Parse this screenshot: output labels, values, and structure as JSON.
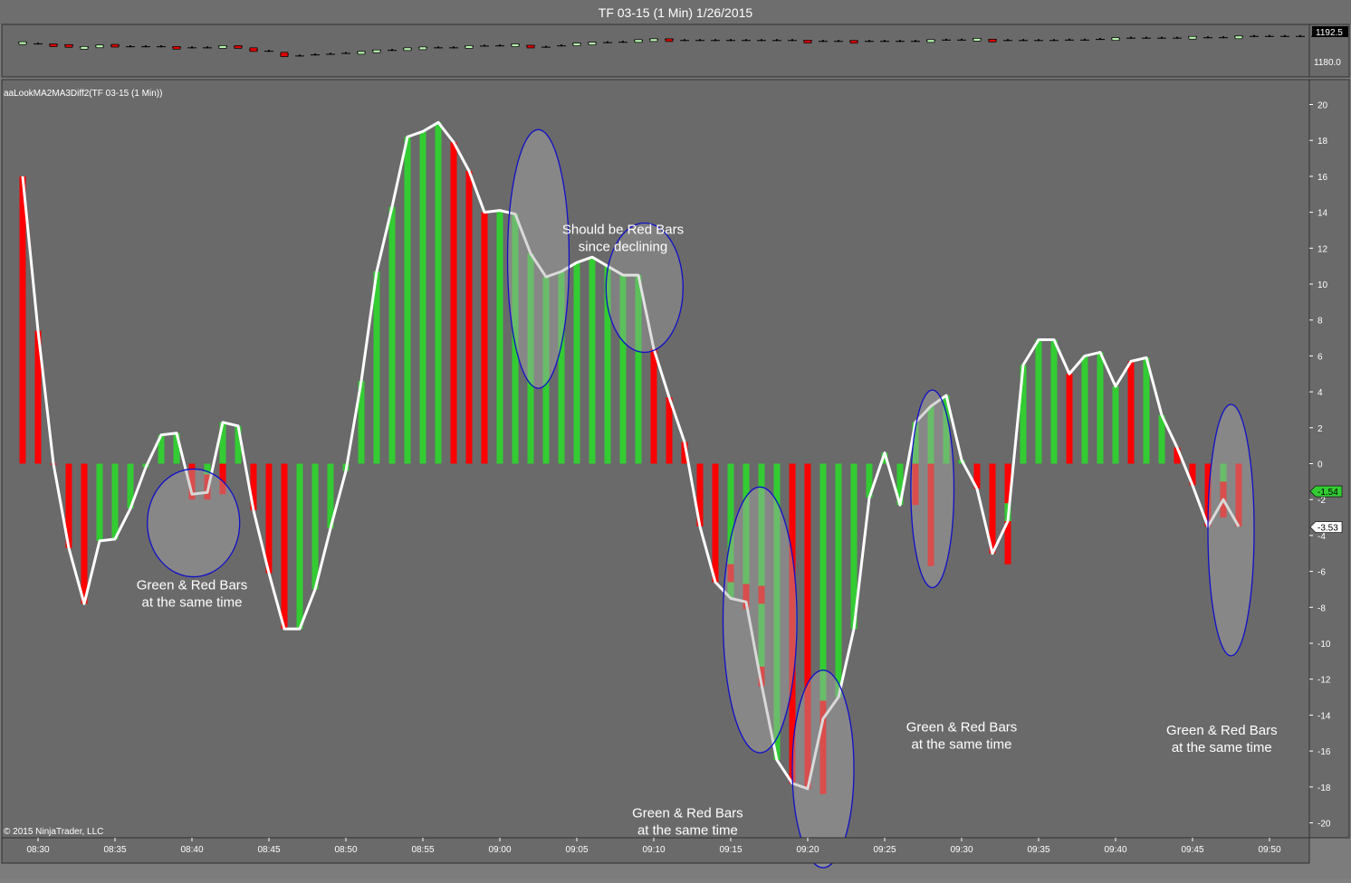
{
  "window": {
    "title": "TF 03-15 (1 Min)  1/26/2015"
  },
  "price_panel": {
    "axis_ticks": [
      "1180.0"
    ],
    "last_price_label": "1192.5",
    "ylim": [
      1177,
      1193
    ],
    "up_color": "#b9f5b0",
    "down_color": "#e00000",
    "bars": [
      {
        "o": 1189.6,
        "c": 1190.4
      },
      {
        "o": 1189.6,
        "c": 1189.6
      },
      {
        "o": 1189.4,
        "c": 1188.7
      },
      {
        "o": 1189.1,
        "c": 1188.5
      },
      {
        "o": 1187.6,
        "c": 1188.2
      },
      {
        "o": 1188.2,
        "c": 1188.9
      },
      {
        "o": 1189.2,
        "c": 1188.1
      },
      {
        "o": 1188.3,
        "c": 1188.3
      },
      {
        "o": 1188.3,
        "c": 1188.3
      },
      {
        "o": 1188.3,
        "c": 1188.3
      },
      {
        "o": 1188.2,
        "c": 1187.5
      },
      {
        "o": 1187.8,
        "c": 1187.8
      },
      {
        "o": 1187.8,
        "c": 1187.8
      },
      {
        "o": 1187.9,
        "c": 1188.6
      },
      {
        "o": 1188.6,
        "c": 1187.8
      },
      {
        "o": 1187.6,
        "c": 1185.9
      },
      {
        "o": 1186.2,
        "c": 1186.2
      },
      {
        "o": 1185.5,
        "c": 1183.5
      },
      {
        "o": 1184.0,
        "c": 1184.0
      },
      {
        "o": 1184.5,
        "c": 1184.5
      },
      {
        "o": 1184.8,
        "c": 1184.8
      },
      {
        "o": 1185.2,
        "c": 1185.2
      },
      {
        "o": 1185.3,
        "c": 1185.9
      },
      {
        "o": 1186.2,
        "c": 1186.6
      },
      {
        "o": 1186.6,
        "c": 1186.6
      },
      {
        "o": 1186.6,
        "c": 1187.6
      },
      {
        "o": 1187.4,
        "c": 1188.0
      },
      {
        "o": 1187.8,
        "c": 1187.8
      },
      {
        "o": 1187.8,
        "c": 1187.8
      },
      {
        "o": 1187.9,
        "c": 1188.6
      },
      {
        "o": 1188.6,
        "c": 1188.6
      },
      {
        "o": 1188.7,
        "c": 1188.7
      },
      {
        "o": 1188.8,
        "c": 1189.4
      },
      {
        "o": 1188.8,
        "c": 1188.1
      },
      {
        "o": 1188.1,
        "c": 1188.1
      },
      {
        "o": 1188.7,
        "c": 1188.7
      },
      {
        "o": 1189.2,
        "c": 1189.8
      },
      {
        "o": 1189.6,
        "c": 1190.2
      },
      {
        "o": 1190.2,
        "c": 1190.2
      },
      {
        "o": 1190.4,
        "c": 1190.4
      },
      {
        "o": 1190.6,
        "c": 1191.4
      },
      {
        "o": 1191.4,
        "c": 1191.8
      },
      {
        "o": 1191.8,
        "c": 1191.2
      },
      {
        "o": 1191.2,
        "c": 1191.2
      },
      {
        "o": 1191.2,
        "c": 1191.2
      },
      {
        "o": 1191.2,
        "c": 1191.2
      },
      {
        "o": 1191.2,
        "c": 1191.2
      },
      {
        "o": 1191.2,
        "c": 1191.2
      },
      {
        "o": 1191.2,
        "c": 1191.2
      },
      {
        "o": 1191.2,
        "c": 1191.2
      },
      {
        "o": 1191.2,
        "c": 1191.2
      },
      {
        "o": 1191.1,
        "c": 1190.6
      },
      {
        "o": 1190.8,
        "c": 1190.8
      },
      {
        "o": 1190.8,
        "c": 1190.8
      },
      {
        "o": 1191.0,
        "c": 1190.4
      },
      {
        "o": 1190.8,
        "c": 1190.8
      },
      {
        "o": 1190.8,
        "c": 1190.8
      },
      {
        "o": 1190.8,
        "c": 1190.8
      },
      {
        "o": 1190.8,
        "c": 1190.8
      },
      {
        "o": 1190.9,
        "c": 1191.4
      },
      {
        "o": 1191.4,
        "c": 1191.4
      },
      {
        "o": 1191.4,
        "c": 1191.4
      },
      {
        "o": 1191.5,
        "c": 1192.0
      },
      {
        "o": 1191.6,
        "c": 1191.1
      },
      {
        "o": 1191.2,
        "c": 1191.2
      },
      {
        "o": 1191.2,
        "c": 1191.2
      },
      {
        "o": 1191.2,
        "c": 1191.2
      },
      {
        "o": 1191.2,
        "c": 1191.2
      },
      {
        "o": 1191.4,
        "c": 1191.4
      },
      {
        "o": 1191.4,
        "c": 1191.4
      },
      {
        "o": 1191.7,
        "c": 1191.7
      },
      {
        "o": 1191.7,
        "c": 1192.3
      },
      {
        "o": 1192.3,
        "c": 1192.3
      },
      {
        "o": 1192.3,
        "c": 1192.3
      },
      {
        "o": 1192.3,
        "c": 1192.3
      },
      {
        "o": 1192.3,
        "c": 1192.3
      },
      {
        "o": 1192.5,
        "c": 1192.9
      },
      {
        "o": 1192.5,
        "c": 1192.5
      },
      {
        "o": 1192.5,
        "c": 1192.5
      },
      {
        "o": 1192.6,
        "c": 1193.1
      },
      {
        "o": 1193.1,
        "c": 1193.1
      },
      {
        "o": 1193.1,
        "c": 1193.1
      },
      {
        "o": 1193.1,
        "c": 1193.1
      },
      {
        "o": 1193.1,
        "c": 1193.1
      },
      {
        "o": 1193.1,
        "c": 1193.1
      },
      {
        "o": 1193.1,
        "c": 1193.1
      }
    ]
  },
  "indicator_panel": {
    "label": "aaLookMA2MA3Diff2(TF 03-15 (1 Min))",
    "copyright": "© 2015 NinjaTrader, LLC",
    "value_labels": [
      {
        "text": "-1.54",
        "value": -1.54,
        "color": "#33cc33"
      },
      {
        "text": "-3.53",
        "value": -3.53,
        "color": "#ffffff"
      }
    ]
  },
  "chart_data": {
    "type": "bar",
    "title": "TF 03-15 (1 Min)  1/26/2015",
    "ylim": [
      -20.5,
      20.5
    ],
    "y_ticks": [
      20,
      18,
      16,
      14,
      12,
      10,
      8,
      6,
      4,
      2,
      0,
      -2,
      -4,
      -6,
      -8,
      -10,
      -12,
      -14,
      -16,
      -18,
      -20
    ],
    "x_ticks": [
      "08:30",
      "08:35",
      "08:40",
      "08:45",
      "08:50",
      "08:55",
      "09:00",
      "09:05",
      "09:10",
      "09:15",
      "09:20",
      "09:25",
      "09:30",
      "09:35",
      "09:40",
      "09:45",
      "09:50"
    ],
    "x_tick_index": [
      1,
      6,
      11,
      16,
      21,
      26,
      31,
      36,
      41,
      46,
      51,
      56,
      61,
      66,
      71,
      76,
      81
    ],
    "green_color": "#33cc33",
    "red_color": "#ff0000",
    "line_color": "#ffffff",
    "series": [
      {
        "values": [
          16,
          7.4,
          0,
          -4.7,
          -7.8,
          -4.3,
          -4.2,
          -2.5,
          -0.2,
          1.6,
          1.7,
          -1.7,
          -1.6,
          2.3,
          2.1,
          -2.6,
          -6.1,
          -9.2,
          -9.2,
          -7.0,
          -3.6,
          -0.4,
          4.6,
          10.7,
          14.3,
          18.2,
          18.5,
          19.0,
          17.9,
          16.3,
          14.0,
          14.1,
          13.9,
          11.7,
          10.4,
          10.7,
          11.2,
          11.5,
          11.0,
          10.5,
          10.5,
          6.4,
          3.7,
          1.2,
          -3.5,
          -6.6,
          -7.5,
          -7.7,
          -12.3,
          -16.5,
          -17.8,
          -18.1,
          -14.2,
          -13.0,
          -9.2,
          -1.9,
          0.6,
          -2.3,
          2.3,
          3.2,
          3.8,
          0.2,
          -1.4,
          -5.0,
          -3.2,
          5.5,
          6.9,
          6.9,
          5.0,
          6.0,
          6.2,
          4.3,
          5.7,
          5.9,
          2.7,
          0.9,
          -1.2,
          -3.5,
          -2.0,
          -3.5
        ],
        "colors": [
          "r",
          "r",
          "r",
          "r",
          "r",
          "g",
          "g",
          "g",
          "g",
          "g",
          "g",
          "r",
          "g",
          "g",
          "g",
          "r",
          "r",
          "r",
          "g",
          "g",
          "g",
          "g",
          "g",
          "g",
          "g",
          "g",
          "g",
          "g",
          "r",
          "r",
          "r",
          "g",
          "g",
          "g",
          "g",
          "g",
          "g",
          "g",
          "g",
          "g",
          "g",
          "r",
          "r",
          "r",
          "r",
          "r",
          "g",
          "g",
          "g",
          "g",
          "r",
          "r",
          "g",
          "g",
          "g",
          "g",
          "g",
          "g",
          "g",
          "g",
          "g",
          "g",
          "r",
          "r",
          "r",
          "g",
          "g",
          "g",
          "r",
          "g",
          "g",
          "g",
          "r",
          "g",
          "g",
          "r",
          "r",
          "r",
          "g",
          "r"
        ],
        "overlay": [
          {
            "i": 11,
            "v": -2.0,
            "c": "r"
          },
          {
            "i": 12,
            "v": -2.0,
            "c": "r"
          },
          {
            "i": 13,
            "v": -1.7,
            "c": "r"
          },
          {
            "i": 46,
            "v": -6.6,
            "c": "r"
          },
          {
            "i": 47,
            "v": -8.1,
            "c": "r"
          },
          {
            "i": 48,
            "v": -7.8,
            "c": "r"
          },
          {
            "i": 48,
            "v": -12.4,
            "c": "r"
          },
          {
            "i": 50,
            "v": -16.6,
            "c": "r"
          },
          {
            "i": 51,
            "v": -15.8,
            "c": "r"
          },
          {
            "i": 51,
            "v": -18.1,
            "c": "r"
          },
          {
            "i": 52,
            "v": -17.3,
            "c": "g"
          },
          {
            "i": 52,
            "v": -18.4,
            "c": "r"
          },
          {
            "i": 58,
            "v": -2.3,
            "c": "r"
          },
          {
            "i": 59,
            "v": -5.7,
            "c": "r"
          },
          {
            "i": 64,
            "v": -5.6,
            "c": "r"
          },
          {
            "i": 64,
            "v": -3.2,
            "c": "g"
          },
          {
            "i": 77,
            "v": -2.2,
            "c": "r"
          },
          {
            "i": 77,
            "v": -3.5,
            "c": "r"
          },
          {
            "i": 78,
            "v": -3.0,
            "c": "r"
          }
        ]
      }
    ],
    "annotations": [
      {
        "lines": [
          "Green & Red Bars",
          "at the same time"
        ],
        "i": 11.0,
        "v": -7.0,
        "ellipse": {
          "i": 11.1,
          "v": -3.3,
          "ri": 3.0,
          "rv": 3.0
        }
      },
      {
        "lines": [
          "Should be Red Bars",
          "since declining"
        ],
        "i": 39.0,
        "v": 12.8,
        "ellipse": {
          "i": 33.5,
          "v": 11.4,
          "ri": 2.0,
          "rv": 7.2,
          "second": {
            "i": 40.4,
            "v": 9.8,
            "ri": 2.5,
            "rv": 3.6
          }
        }
      },
      {
        "lines": [
          "Green & Red Bars",
          "at the same time"
        ],
        "i": 43.2,
        "v": -19.7,
        "ellipse": {
          "i": 47.9,
          "v": -8.7,
          "ri": 2.4,
          "rv": 7.4
        }
      },
      {
        "lines": [
          "",
          ""
        ],
        "i": 52.0,
        "v": -20.2,
        "ellipse": {
          "i": 52.0,
          "v": -17.0,
          "ri": 2.0,
          "rv": 5.5
        }
      },
      {
        "lines": [
          "Green & Red Bars",
          "at the same time"
        ],
        "i": 61.0,
        "v": -14.9,
        "ellipse": {
          "i": 59.1,
          "v": -1.4,
          "ri": 1.4,
          "rv": 5.5
        }
      },
      {
        "lines": [
          "Green & Red Bars",
          "at the same time"
        ],
        "i": 77.9,
        "v": -15.1,
        "ellipse": {
          "i": 78.5,
          "v": -3.7,
          "ri": 1.5,
          "rv": 7.0
        }
      }
    ]
  }
}
